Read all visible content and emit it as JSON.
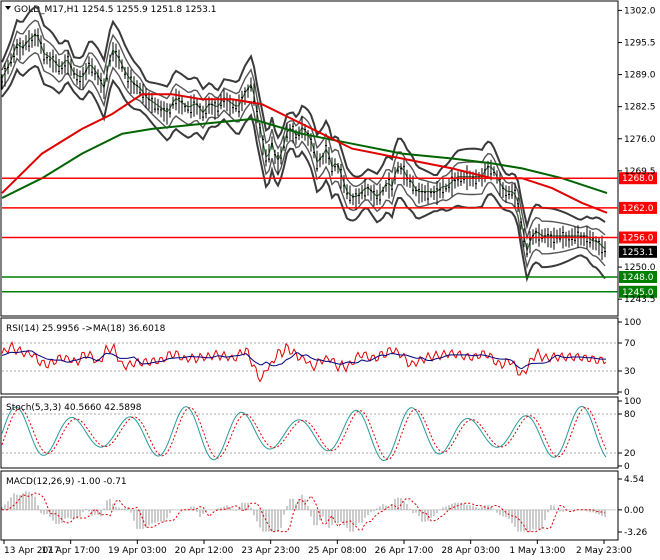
{
  "title_text": "GOLD_M17,H1  1254.5 1255.9 1251.8 1253.1",
  "chart_data": {
    "type": "candlestick",
    "symbol": "GOLD_M17",
    "timeframe": "H1",
    "ohlc_last": {
      "open": 1254.5,
      "high": 1255.9,
      "low": 1251.8,
      "close": 1253.1
    },
    "current_price_label": "1253.1",
    "price_axis_ticks": [
      "1302.0",
      "1295.5",
      "1289.0",
      "1282.5",
      "1276.0",
      "1269.5",
      "1250.0",
      "1243.5"
    ],
    "price_range": [
      1240.5,
      1303.5
    ],
    "x_tick_labels": [
      "13 Apr 2017",
      "17 Apr 17:00",
      "19 Apr 03:00",
      "20 Apr 12:00",
      "23 Apr 23:00",
      "25 Apr 08:00",
      "26 Apr 17:00",
      "28 Apr 03:00",
      "1 May 13:00",
      "2 May 23:00"
    ],
    "levels": [
      {
        "price": 1268.0,
        "label": "1268.0",
        "color": "#ff0000"
      },
      {
        "price": 1262.0,
        "label": "1262.0",
        "color": "#ff0000"
      },
      {
        "price": 1256.0,
        "label": "1256.0",
        "color": "#ff0000"
      },
      {
        "price": 1248.0,
        "label": "1248.0",
        "color": "#008000"
      },
      {
        "price": 1245.0,
        "label": "1245.0",
        "color": "#008000"
      }
    ],
    "price_path": [
      [
        0,
        1288
      ],
      [
        8,
        1291
      ],
      [
        15,
        1295
      ],
      [
        20,
        1294
      ],
      [
        28,
        1296
      ],
      [
        35,
        1297
      ],
      [
        42,
        1293
      ],
      [
        50,
        1292
      ],
      [
        58,
        1290
      ],
      [
        65,
        1292
      ],
      [
        72,
        1289
      ],
      [
        80,
        1288
      ],
      [
        88,
        1291
      ],
      [
        95,
        1289
      ],
      [
        102,
        1286
      ],
      [
        110,
        1294
      ],
      [
        117,
        1292
      ],
      [
        124,
        1289
      ],
      [
        131,
        1287
      ],
      [
        138,
        1286
      ],
      [
        145,
        1284
      ],
      [
        152,
        1283
      ],
      [
        159,
        1282
      ],
      [
        166,
        1281
      ],
      [
        173,
        1284
      ],
      [
        180,
        1283
      ],
      [
        187,
        1282
      ],
      [
        194,
        1283
      ],
      [
        201,
        1281
      ],
      [
        208,
        1283
      ],
      [
        215,
        1282
      ],
      [
        222,
        1284
      ],
      [
        229,
        1283
      ],
      [
        236,
        1282
      ],
      [
        243,
        1285
      ],
      [
        250,
        1287
      ],
      [
        255,
        1281
      ],
      [
        260,
        1276
      ],
      [
        265,
        1271
      ],
      [
        270,
        1275
      ],
      [
        275,
        1271
      ],
      [
        280,
        1273
      ],
      [
        285,
        1277
      ],
      [
        290,
        1278
      ],
      [
        295,
        1276
      ],
      [
        300,
        1278
      ],
      [
        305,
        1277
      ],
      [
        310,
        1275
      ],
      [
        315,
        1271
      ],
      [
        320,
        1272
      ],
      [
        325,
        1274
      ],
      [
        330,
        1270
      ],
      [
        335,
        1271
      ],
      [
        340,
        1268
      ],
      [
        345,
        1265
      ],
      [
        350,
        1264
      ],
      [
        355,
        1264
      ],
      [
        360,
        1265
      ],
      [
        365,
        1266
      ],
      [
        370,
        1265
      ],
      [
        375,
        1264
      ],
      [
        380,
        1265
      ],
      [
        385,
        1267
      ],
      [
        390,
        1266
      ],
      [
        395,
        1270
      ],
      [
        400,
        1270
      ],
      [
        405,
        1268
      ],
      [
        410,
        1267
      ],
      [
        415,
        1265
      ],
      [
        420,
        1265
      ],
      [
        425,
        1265
      ],
      [
        430,
        1265
      ],
      [
        435,
        1265
      ],
      [
        440,
        1266
      ],
      [
        445,
        1266
      ],
      [
        450,
        1267
      ],
      [
        455,
        1268
      ],
      [
        460,
        1268
      ],
      [
        465,
        1268
      ],
      [
        470,
        1268
      ],
      [
        475,
        1268
      ],
      [
        480,
        1268
      ],
      [
        485,
        1270
      ],
      [
        490,
        1270
      ],
      [
        495,
        1268
      ],
      [
        500,
        1266
      ],
      [
        505,
        1265
      ],
      [
        510,
        1265
      ],
      [
        515,
        1264
      ],
      [
        520,
        1258
      ],
      [
        525,
        1253
      ],
      [
        530,
        1256
      ],
      [
        535,
        1257
      ],
      [
        540,
        1256
      ],
      [
        545,
        1256
      ],
      [
        550,
        1256
      ],
      [
        555,
        1256
      ],
      [
        560,
        1256
      ],
      [
        565,
        1256
      ],
      [
        570,
        1256
      ],
      [
        575,
        1256
      ],
      [
        580,
        1256
      ],
      [
        585,
        1256
      ],
      [
        590,
        1255
      ],
      [
        595,
        1255
      ],
      [
        600,
        1254
      ],
      [
        605,
        1253
      ]
    ],
    "ma_red": [
      [
        0,
        1265
      ],
      [
        40,
        1273
      ],
      [
        80,
        1278
      ],
      [
        110,
        1281
      ],
      [
        140,
        1285
      ],
      [
        170,
        1285
      ],
      [
        200,
        1284
      ],
      [
        230,
        1284
      ],
      [
        260,
        1283
      ],
      [
        300,
        1279
      ],
      [
        350,
        1274
      ],
      [
        400,
        1272
      ],
      [
        450,
        1270
      ],
      [
        490,
        1268
      ],
      [
        520,
        1268
      ],
      [
        550,
        1266
      ],
      [
        580,
        1263
      ],
      [
        605,
        1261
      ]
    ],
    "ma_green": [
      [
        0,
        1264
      ],
      [
        40,
        1268
      ],
      [
        80,
        1273
      ],
      [
        120,
        1277
      ],
      [
        150,
        1278
      ],
      [
        200,
        1279
      ],
      [
        250,
        1280
      ],
      [
        300,
        1277
      ],
      [
        350,
        1275
      ],
      [
        400,
        1273
      ],
      [
        450,
        1272
      ],
      [
        490,
        1271
      ],
      [
        520,
        1270
      ],
      [
        560,
        1268
      ],
      [
        605,
        1265
      ]
    ],
    "rsi": {
      "label": "RSI(14) 25.9956  ->MA(18) 36.6018",
      "ticks": [
        "100",
        "70",
        "30",
        "0"
      ],
      "range": [
        0,
        100
      ],
      "last": 25.9956,
      "ma_last": 36.6018
    },
    "stoch": {
      "label": "Stoch(5,3,3) 40.5660 42.5898",
      "ticks": [
        "100",
        "80",
        "20",
        "0"
      ],
      "range": [
        0,
        100
      ],
      "k_last": 40.566,
      "d_last": 42.5898
    },
    "macd": {
      "label": "MACD(12,26,9) -1.00 -0.71",
      "ticks": [
        "4.54",
        "0.00",
        "-3.26"
      ],
      "range": [
        -3.26,
        4.54
      ],
      "main_last": -1.0,
      "signal_last": -0.71
    }
  }
}
